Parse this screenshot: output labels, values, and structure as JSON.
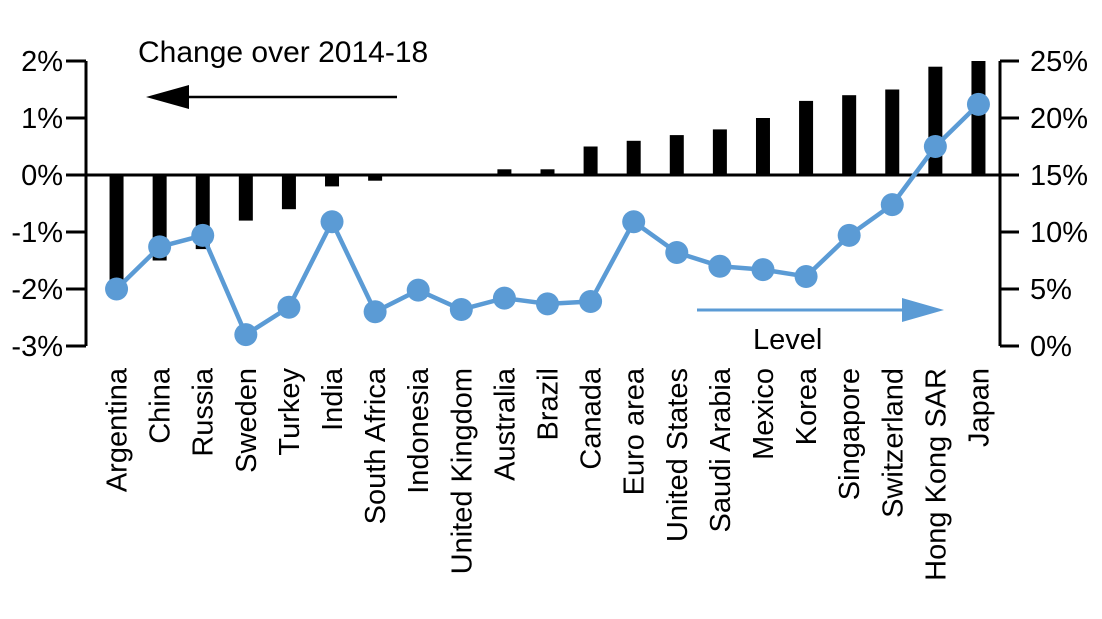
{
  "page": {
    "background": "#ffffff"
  },
  "chart_data": {
    "type": "bar+line combo",
    "title": "",
    "categories": [
      "Argentina",
      "China",
      "Russia",
      "Sweden",
      "Turkey",
      "India",
      "South Africa",
      "Indonesia",
      "United Kingdom",
      "Australia",
      "Brazil",
      "Canada",
      "Euro area",
      "United States",
      "Saudi Arabia",
      "Mexico",
      "Korea",
      "Singapore",
      "Switzerland",
      "Hong Kong SAR",
      "Japan"
    ],
    "series": [
      {
        "name": "Change over 2014-18",
        "type": "bar",
        "axis": "left",
        "color": "#000000",
        "values": [
          -1.9,
          -1.5,
          -1.3,
          -0.8,
          -0.6,
          -0.2,
          -0.1,
          0,
          0,
          0.1,
          0.1,
          0.5,
          0.6,
          0.7,
          0.8,
          1.0,
          1.3,
          1.4,
          1.5,
          1.9,
          2.0
        ]
      },
      {
        "name": "Level",
        "type": "line",
        "axis": "right",
        "color": "#5b9bd5",
        "values": [
          5.0,
          8.7,
          9.7,
          1.0,
          3.4,
          10.9,
          3.0,
          4.9,
          3.2,
          4.2,
          3.7,
          3.9,
          10.9,
          8.2,
          7.0,
          6.7,
          6.1,
          9.7,
          12.4,
          17.5,
          21.2
        ]
      }
    ],
    "left_axis": {
      "tick_labels": [
        "2%",
        "1%",
        "0%",
        "-1%",
        "-2%",
        "-3%"
      ],
      "tick_values": [
        2,
        1,
        0,
        -1,
        -2,
        -3
      ],
      "min": -3,
      "max": 2
    },
    "right_axis": {
      "tick_labels": [
        "25%",
        "20%",
        "15%",
        "10%",
        "5%",
        "0%"
      ],
      "tick_values": [
        25,
        20,
        15,
        10,
        5,
        0
      ],
      "min": 0,
      "max": 25
    },
    "annotations": {
      "change_label": "Change over 2014-18",
      "level_label": "Level"
    },
    "grid": false,
    "legend_position": "in-plot arrows pointing toward each series' axis",
    "colors": {
      "bar": "#000000",
      "line": "#5b9bd5",
      "axis": "#000000"
    }
  }
}
